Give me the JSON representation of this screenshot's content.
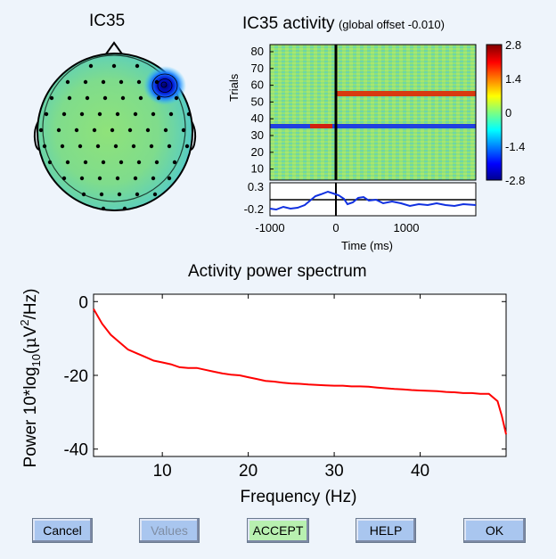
{
  "scalp": {
    "title": "IC35"
  },
  "erp": {
    "title": "IC35 activity",
    "subtitle": "(global offset -0.010)",
    "ylabel": "Trials",
    "yticks": [
      "80",
      "70",
      "60",
      "50",
      "40",
      "30",
      "20",
      "10"
    ],
    "colorbar_ticks": [
      "2.8",
      "1.4",
      "0",
      "-1.4",
      "-2.8"
    ],
    "trace_ticks": [
      "0.3",
      "-0.2"
    ],
    "xticks": [
      "-1000",
      "0",
      "1000"
    ],
    "xlabel": "Time (ms)"
  },
  "spectrum": {
    "title": "Activity power spectrum",
    "ylabel_html": "Power 10*log<sub>10</sub>(<tspan font-family='DejaVu Serif'>μ</tspan>V<sup>2</sup>/Hz)",
    "ylabel": "Power 10*log10(μV2/Hz)",
    "xlabel": "Frequency (Hz)",
    "yticks": [
      "0",
      "-20",
      "-40"
    ],
    "xticks": [
      "10",
      "20",
      "30",
      "40"
    ]
  },
  "chart_data": {
    "type": "line",
    "title": "Activity power spectrum",
    "xlabel": "Frequency (Hz)",
    "ylabel": "Power 10*log10(μV2/Hz)",
    "xlim": [
      2,
      50
    ],
    "ylim": [
      -42,
      2
    ],
    "x": [
      2,
      3,
      4,
      5,
      6,
      7,
      8,
      9,
      10,
      11,
      12,
      13,
      14,
      15,
      16,
      17,
      18,
      19,
      20,
      21,
      22,
      23,
      24,
      25,
      26,
      27,
      28,
      29,
      30,
      31,
      32,
      33,
      34,
      35,
      36,
      37,
      38,
      39,
      40,
      41,
      42,
      43,
      44,
      45,
      46,
      47,
      48,
      49,
      49.5,
      50
    ],
    "values": [
      -2,
      -6,
      -9,
      -11,
      -13,
      -14,
      -15,
      -16,
      -16.5,
      -17,
      -17.8,
      -18,
      -18,
      -18.5,
      -19,
      -19.5,
      -19.8,
      -20,
      -20.5,
      -21,
      -21.5,
      -21.7,
      -22,
      -22.2,
      -22.3,
      -22.5,
      -22.6,
      -22.7,
      -22.8,
      -22.8,
      -23,
      -23,
      -23.1,
      -23.3,
      -23.5,
      -23.7,
      -23.8,
      -24,
      -24.1,
      -24.2,
      -24.3,
      -24.5,
      -24.6,
      -24.8,
      -24.8,
      -25,
      -25,
      -27,
      -31,
      -36
    ],
    "grid": false
  },
  "buttons": {
    "cancel": "Cancel",
    "values": "Values",
    "accept": "ACCEPT",
    "help": "HELP",
    "ok": "OK"
  },
  "colors": {
    "spectrum_line": "#ff0000",
    "trace_line": "#1030e0",
    "background": "#eef4fb"
  }
}
